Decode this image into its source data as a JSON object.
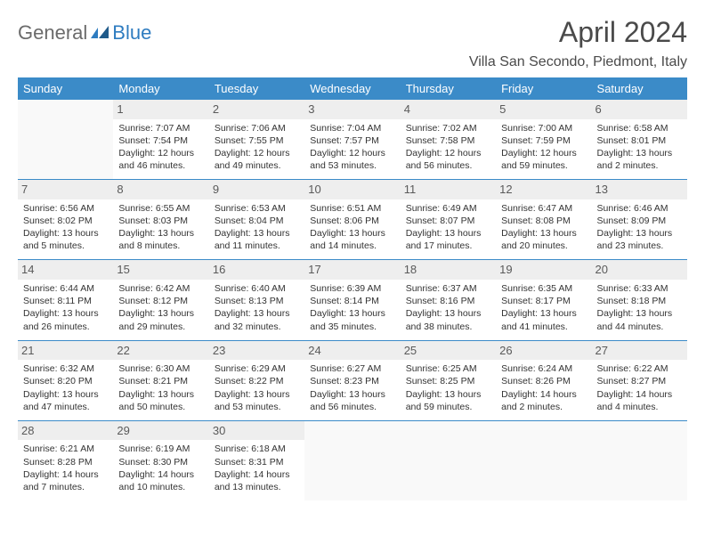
{
  "logo": {
    "gray": "General",
    "blue": "Blue"
  },
  "title": "April 2024",
  "location": "Villa San Secondo, Piedmont, Italy",
  "headers": [
    "Sunday",
    "Monday",
    "Tuesday",
    "Wednesday",
    "Thursday",
    "Friday",
    "Saturday"
  ],
  "colors": {
    "header_bg": "#3b8bc8",
    "header_fg": "#ffffff",
    "daynum_bg": "#eeeeee",
    "border": "#3b8bc8",
    "title_fg": "#4a4a4a"
  },
  "weeks": [
    [
      null,
      {
        "n": "1",
        "sr": "7:07 AM",
        "ss": "7:54 PM",
        "dl": "12 hours and 46 minutes."
      },
      {
        "n": "2",
        "sr": "7:06 AM",
        "ss": "7:55 PM",
        "dl": "12 hours and 49 minutes."
      },
      {
        "n": "3",
        "sr": "7:04 AM",
        "ss": "7:57 PM",
        "dl": "12 hours and 53 minutes."
      },
      {
        "n": "4",
        "sr": "7:02 AM",
        "ss": "7:58 PM",
        "dl": "12 hours and 56 minutes."
      },
      {
        "n": "5",
        "sr": "7:00 AM",
        "ss": "7:59 PM",
        "dl": "12 hours and 59 minutes."
      },
      {
        "n": "6",
        "sr": "6:58 AM",
        "ss": "8:01 PM",
        "dl": "13 hours and 2 minutes."
      }
    ],
    [
      {
        "n": "7",
        "sr": "6:56 AM",
        "ss": "8:02 PM",
        "dl": "13 hours and 5 minutes."
      },
      {
        "n": "8",
        "sr": "6:55 AM",
        "ss": "8:03 PM",
        "dl": "13 hours and 8 minutes."
      },
      {
        "n": "9",
        "sr": "6:53 AM",
        "ss": "8:04 PM",
        "dl": "13 hours and 11 minutes."
      },
      {
        "n": "10",
        "sr": "6:51 AM",
        "ss": "8:06 PM",
        "dl": "13 hours and 14 minutes."
      },
      {
        "n": "11",
        "sr": "6:49 AM",
        "ss": "8:07 PM",
        "dl": "13 hours and 17 minutes."
      },
      {
        "n": "12",
        "sr": "6:47 AM",
        "ss": "8:08 PM",
        "dl": "13 hours and 20 minutes."
      },
      {
        "n": "13",
        "sr": "6:46 AM",
        "ss": "8:09 PM",
        "dl": "13 hours and 23 minutes."
      }
    ],
    [
      {
        "n": "14",
        "sr": "6:44 AM",
        "ss": "8:11 PM",
        "dl": "13 hours and 26 minutes."
      },
      {
        "n": "15",
        "sr": "6:42 AM",
        "ss": "8:12 PM",
        "dl": "13 hours and 29 minutes."
      },
      {
        "n": "16",
        "sr": "6:40 AM",
        "ss": "8:13 PM",
        "dl": "13 hours and 32 minutes."
      },
      {
        "n": "17",
        "sr": "6:39 AM",
        "ss": "8:14 PM",
        "dl": "13 hours and 35 minutes."
      },
      {
        "n": "18",
        "sr": "6:37 AM",
        "ss": "8:16 PM",
        "dl": "13 hours and 38 minutes."
      },
      {
        "n": "19",
        "sr": "6:35 AM",
        "ss": "8:17 PM",
        "dl": "13 hours and 41 minutes."
      },
      {
        "n": "20",
        "sr": "6:33 AM",
        "ss": "8:18 PM",
        "dl": "13 hours and 44 minutes."
      }
    ],
    [
      {
        "n": "21",
        "sr": "6:32 AM",
        "ss": "8:20 PM",
        "dl": "13 hours and 47 minutes."
      },
      {
        "n": "22",
        "sr": "6:30 AM",
        "ss": "8:21 PM",
        "dl": "13 hours and 50 minutes."
      },
      {
        "n": "23",
        "sr": "6:29 AM",
        "ss": "8:22 PM",
        "dl": "13 hours and 53 minutes."
      },
      {
        "n": "24",
        "sr": "6:27 AM",
        "ss": "8:23 PM",
        "dl": "13 hours and 56 minutes."
      },
      {
        "n": "25",
        "sr": "6:25 AM",
        "ss": "8:25 PM",
        "dl": "13 hours and 59 minutes."
      },
      {
        "n": "26",
        "sr": "6:24 AM",
        "ss": "8:26 PM",
        "dl": "14 hours and 2 minutes."
      },
      {
        "n": "27",
        "sr": "6:22 AM",
        "ss": "8:27 PM",
        "dl": "14 hours and 4 minutes."
      }
    ],
    [
      {
        "n": "28",
        "sr": "6:21 AM",
        "ss": "8:28 PM",
        "dl": "14 hours and 7 minutes."
      },
      {
        "n": "29",
        "sr": "6:19 AM",
        "ss": "8:30 PM",
        "dl": "14 hours and 10 minutes."
      },
      {
        "n": "30",
        "sr": "6:18 AM",
        "ss": "8:31 PM",
        "dl": "14 hours and 13 minutes."
      },
      null,
      null,
      null,
      null
    ]
  ],
  "labels": {
    "sunrise": "Sunrise: ",
    "sunset": "Sunset: ",
    "daylight": "Daylight: "
  }
}
